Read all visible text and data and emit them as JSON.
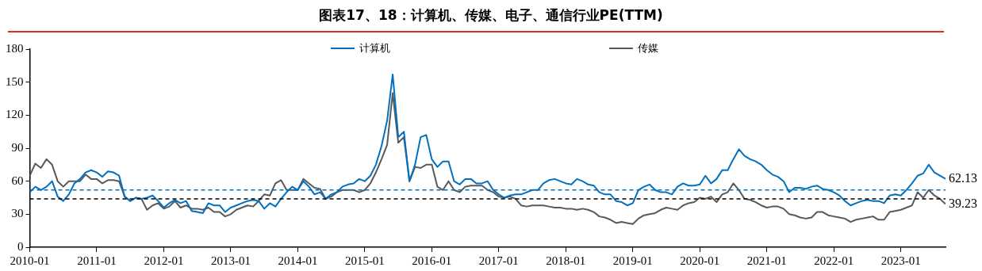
{
  "chart_data": {
    "type": "line",
    "title": "图表17、18：计算机、传媒、电子、通信行业PE(TTM)",
    "x": [
      "2010-01",
      "2010-02",
      "2010-03",
      "2010-04",
      "2010-05",
      "2010-06",
      "2010-07",
      "2010-08",
      "2010-09",
      "2010-10",
      "2010-11",
      "2010-12",
      "2011-01",
      "2011-02",
      "2011-03",
      "2011-04",
      "2011-05",
      "2011-06",
      "2011-07",
      "2011-08",
      "2011-09",
      "2011-10",
      "2011-11",
      "2011-12",
      "2012-01",
      "2012-02",
      "2012-03",
      "2012-04",
      "2012-05",
      "2012-06",
      "2012-07",
      "2012-08",
      "2012-09",
      "2012-10",
      "2012-11",
      "2012-12",
      "2013-01",
      "2013-02",
      "2013-03",
      "2013-04",
      "2013-05",
      "2013-06",
      "2013-07",
      "2013-08",
      "2013-09",
      "2013-10",
      "2013-11",
      "2013-12",
      "2014-01",
      "2014-02",
      "2014-03",
      "2014-04",
      "2014-05",
      "2014-06",
      "2014-07",
      "2014-08",
      "2014-09",
      "2014-10",
      "2014-11",
      "2014-12",
      "2015-01",
      "2015-02",
      "2015-03",
      "2015-04",
      "2015-05",
      "2015-06",
      "2015-07",
      "2015-08",
      "2015-09",
      "2015-10",
      "2015-11",
      "2015-12",
      "2016-01",
      "2016-02",
      "2016-03",
      "2016-04",
      "2016-05",
      "2016-06",
      "2016-07",
      "2016-08",
      "2016-09",
      "2016-10",
      "2016-11",
      "2016-12",
      "2017-01",
      "2017-02",
      "2017-03",
      "2017-04",
      "2017-05",
      "2017-06",
      "2017-07",
      "2017-08",
      "2017-09",
      "2017-10",
      "2017-11",
      "2017-12",
      "2018-01",
      "2018-02",
      "2018-03",
      "2018-04",
      "2018-05",
      "2018-06",
      "2018-07",
      "2018-08",
      "2018-09",
      "2018-10",
      "2018-11",
      "2018-12",
      "2019-01",
      "2019-02",
      "2019-03",
      "2019-04",
      "2019-05",
      "2019-06",
      "2019-07",
      "2019-08",
      "2019-09",
      "2019-10",
      "2019-11",
      "2019-12",
      "2020-01",
      "2020-02",
      "2020-03",
      "2020-04",
      "2020-05",
      "2020-06",
      "2020-07",
      "2020-08",
      "2020-09",
      "2020-10",
      "2020-11",
      "2020-12",
      "2021-01",
      "2021-02",
      "2021-03",
      "2021-04",
      "2021-05",
      "2021-06",
      "2021-07",
      "2021-08",
      "2021-09",
      "2021-10",
      "2021-11",
      "2021-12",
      "2022-01",
      "2022-02",
      "2022-03",
      "2022-04",
      "2022-05",
      "2022-06",
      "2022-07",
      "2022-08",
      "2022-09",
      "2022-10",
      "2022-11",
      "2022-12",
      "2023-01",
      "2023-02",
      "2023-03",
      "2023-04",
      "2023-05",
      "2023-06",
      "2023-07",
      "2023-08",
      "2023-09"
    ],
    "series": [
      {
        "name": "计算机",
        "color": "#0070c0",
        "values": [
          50,
          55,
          52,
          55,
          60,
          46,
          42,
          48,
          58,
          62,
          68,
          70,
          68,
          64,
          69,
          68,
          65,
          46,
          42,
          45,
          44,
          45,
          47,
          42,
          36,
          40,
          43,
          40,
          42,
          33,
          32,
          31,
          40,
          38,
          38,
          32,
          36,
          38,
          40,
          42,
          43,
          42,
          35,
          40,
          37,
          44,
          50,
          55,
          52,
          60,
          55,
          48,
          50,
          44,
          48,
          50,
          55,
          57,
          58,
          62,
          60,
          65,
          75,
          92,
          115,
          157,
          100,
          105,
          60,
          75,
          100,
          102,
          80,
          73,
          78,
          78,
          60,
          57,
          62,
          62,
          58,
          58,
          60,
          52,
          48,
          45,
          47,
          48,
          48,
          50,
          52,
          52,
          58,
          61,
          62,
          60,
          58,
          57,
          62,
          60,
          57,
          56,
          50,
          48,
          48,
          42,
          41,
          38,
          40,
          52,
          55,
          57,
          52,
          50,
          50,
          48,
          55,
          58,
          56,
          56,
          57,
          65,
          58,
          62,
          70,
          70,
          80,
          89,
          83,
          80,
          78,
          75,
          70,
          66,
          64,
          60,
          50,
          54,
          54,
          53,
          55,
          56,
          53,
          52,
          50,
          47,
          42,
          38,
          40,
          42,
          43,
          42,
          42,
          40,
          47,
          48,
          47,
          52,
          58,
          65,
          67,
          75,
          68,
          65,
          62.13
        ]
      },
      {
        "name": "传媒",
        "color": "#595959",
        "values": [
          65,
          76,
          72,
          80,
          75,
          60,
          55,
          60,
          60,
          60,
          66,
          62,
          62,
          58,
          61,
          61,
          60,
          46,
          42,
          45,
          44,
          34,
          38,
          40,
          35,
          37,
          42,
          36,
          38,
          35,
          35,
          34,
          36,
          32,
          32,
          28,
          30,
          34,
          36,
          38,
          37,
          42,
          48,
          47,
          58,
          61,
          52,
          52,
          52,
          62,
          58,
          54,
          53,
          44,
          46,
          50,
          52,
          52,
          52,
          50,
          52,
          58,
          68,
          80,
          93,
          140,
          95,
          100,
          60,
          73,
          72,
          75,
          75,
          55,
          52,
          60,
          52,
          50,
          55,
          56,
          56,
          56,
          52,
          50,
          46,
          45,
          46,
          44,
          38,
          37,
          38,
          38,
          38,
          37,
          36,
          36,
          35,
          35,
          34,
          35,
          34,
          32,
          28,
          27,
          25,
          22,
          23,
          22,
          21,
          26,
          29,
          30,
          31,
          34,
          36,
          35,
          34,
          38,
          40,
          41,
          45,
          44,
          46,
          41,
          48,
          50,
          58,
          52,
          44,
          43,
          41,
          38,
          36,
          37,
          37,
          35,
          30,
          29,
          27,
          26,
          27,
          32,
          32,
          29,
          28,
          27,
          26,
          23,
          25,
          26,
          27,
          28,
          25,
          25,
          32,
          33,
          34,
          36,
          38,
          50,
          45,
          52,
          47,
          44,
          39.23
        ]
      }
    ],
    "xlim": [
      "2010-01",
      "2023-09"
    ],
    "xticks": [
      "2010-01",
      "2011-01",
      "2012-01",
      "2013-01",
      "2014-01",
      "2015-01",
      "2016-01",
      "2017-01",
      "2018-01",
      "2019-01",
      "2020-01",
      "2021-01",
      "2022-01",
      "2023-01"
    ],
    "ylim": [
      0,
      180
    ],
    "yticks": [
      0,
      30,
      60,
      90,
      120,
      150,
      180
    ],
    "ref_lines": [
      {
        "axis": "y",
        "value": 52,
        "color": "#0070c0",
        "line_style": "dashed"
      },
      {
        "axis": "y",
        "value": 44,
        "color": "#000000",
        "line_style": "dashed"
      }
    ],
    "annotations": [
      {
        "text": "62.13",
        "x": "2023-09",
        "y": 62.13
      },
      {
        "text": "39.23",
        "x": "2023-09",
        "y": 39.23
      }
    ],
    "grid": false,
    "legend": "top",
    "marker": "none",
    "line_style": "solid"
  }
}
